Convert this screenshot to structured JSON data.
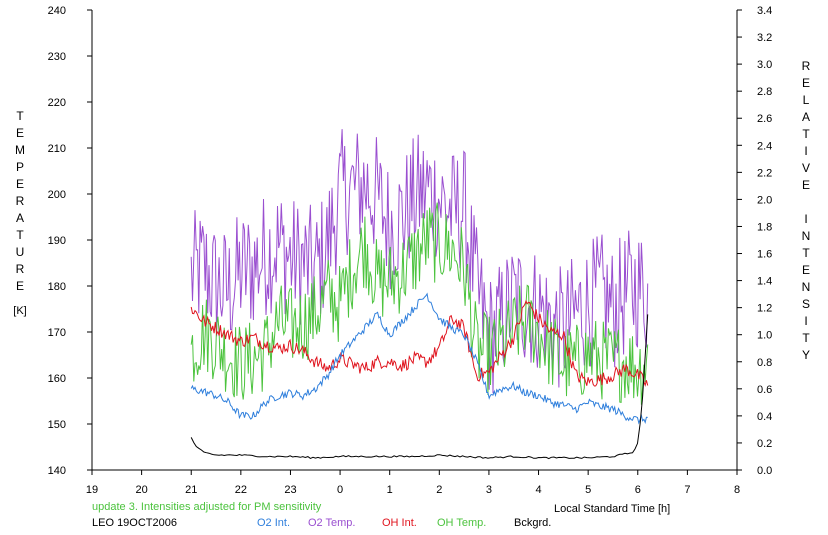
{
  "chart_data": {
    "type": "line",
    "y_left_label": "TEMPERATURE",
    "y_left_unit": "[K]",
    "y_right_label": "RELATIVE INTENSITY",
    "x_label": "Local Standard Time [h]",
    "note": "update 3. Intensities adjusted for PM sensitivity",
    "station": "LEO 19OCT2006",
    "x_ticks": [
      "19",
      "20",
      "21",
      "22",
      "23",
      "0",
      "1",
      "2",
      "3",
      "4",
      "5",
      "6",
      "7",
      "8"
    ],
    "y_left_ticks": [
      140,
      150,
      160,
      170,
      180,
      190,
      200,
      210,
      220,
      230,
      240
    ],
    "y_right_ticks": [
      "0.0",
      "0.2",
      "0.4",
      "0.6",
      "0.8",
      "1.0",
      "1.2",
      "1.4",
      "1.6",
      "1.8",
      "2.0",
      "2.2",
      "2.4",
      "2.6",
      "2.8",
      "3.0",
      "3.2",
      "3.4"
    ],
    "x_range_hours_after_19": [
      0,
      13
    ],
    "y_left_range": [
      140,
      240
    ],
    "y_right_range": [
      0,
      3.4
    ],
    "legend": [
      {
        "name": "O2 Int.",
        "color": "#2f7fdc"
      },
      {
        "name": "O2 Temp.",
        "color": "#9a4fd0"
      },
      {
        "name": "OH Int.",
        "color": "#e0141e"
      },
      {
        "name": "OH Temp.",
        "color": "#4cc33e"
      },
      {
        "name": "Bckgrd.",
        "color": "#000000"
      }
    ],
    "series": [
      {
        "name": "O2 Temp.",
        "axis": "left",
        "color": "#9a4fd0",
        "x": [
          21.0,
          21.25,
          21.5,
          21.75,
          22.0,
          22.25,
          22.5,
          22.75,
          23.0,
          23.25,
          23.5,
          23.75,
          24.0,
          24.25,
          24.5,
          24.75,
          25.0,
          25.25,
          25.5,
          25.75,
          26.0,
          26.25,
          26.5,
          26.75,
          27.0,
          27.25,
          27.5,
          27.75,
          28.0,
          28.25,
          28.5,
          28.75,
          29.0,
          29.25,
          29.5,
          29.75,
          30.0,
          30.2
        ],
        "y": [
          182,
          184,
          180,
          179,
          183,
          184,
          187,
          189,
          186,
          185,
          183,
          189,
          200,
          201,
          202,
          199,
          193,
          195,
          199,
          201,
          199,
          196,
          197,
          179,
          169,
          172,
          177,
          176,
          175,
          172,
          170,
          174,
          176,
          178,
          175,
          178,
          180,
          178
        ]
      },
      {
        "name": "OH Temp.",
        "axis": "left",
        "color": "#4cc33e",
        "x": [
          21.0,
          21.25,
          21.5,
          21.75,
          22.0,
          22.25,
          22.5,
          22.75,
          23.0,
          23.25,
          23.5,
          23.75,
          24.0,
          24.25,
          24.5,
          24.75,
          25.0,
          25.25,
          25.5,
          25.75,
          26.0,
          26.25,
          26.5,
          26.75,
          27.0,
          27.25,
          27.5,
          27.75,
          28.0,
          28.25,
          28.5,
          28.75,
          29.0,
          29.25,
          29.5,
          29.75,
          30.0,
          30.2
        ],
        "y": [
          166,
          170,
          168,
          165,
          163,
          164,
          166,
          172,
          171,
          172,
          174,
          178,
          176,
          184,
          189,
          181,
          181,
          183,
          186,
          190,
          189,
          188,
          184,
          166,
          165,
          167,
          170,
          173,
          170,
          166,
          163,
          163,
          165,
          164,
          163,
          164,
          162,
          164
        ]
      },
      {
        "name": "OH Int.",
        "axis": "right",
        "color": "#e0141e",
        "x": [
          21.0,
          21.25,
          21.5,
          21.75,
          22.0,
          22.25,
          22.5,
          22.75,
          23.0,
          23.25,
          23.5,
          23.75,
          24.0,
          24.25,
          24.5,
          24.75,
          25.0,
          25.25,
          25.5,
          25.75,
          26.0,
          26.25,
          26.5,
          26.75,
          27.0,
          27.25,
          27.5,
          27.75,
          28.0,
          28.25,
          28.5,
          28.75,
          29.0,
          29.25,
          29.5,
          29.75,
          30.0,
          30.2
        ],
        "y": [
          1.2,
          1.1,
          1.05,
          1.0,
          0.95,
          0.98,
          0.93,
          0.9,
          0.92,
          0.88,
          0.8,
          0.75,
          0.82,
          0.78,
          0.75,
          0.8,
          0.8,
          0.77,
          0.82,
          0.8,
          0.9,
          1.12,
          1.05,
          0.7,
          0.72,
          0.85,
          0.98,
          1.25,
          1.12,
          1.02,
          1.0,
          0.7,
          0.65,
          0.67,
          0.7,
          0.75,
          0.7,
          0.63
        ]
      },
      {
        "name": "O2 Int.",
        "axis": "right",
        "color": "#2f7fdc",
        "x": [
          21.0,
          21.25,
          21.5,
          21.75,
          22.0,
          22.25,
          22.5,
          22.75,
          23.0,
          23.25,
          23.5,
          23.75,
          24.0,
          24.25,
          24.5,
          24.75,
          25.0,
          25.25,
          25.5,
          25.75,
          26.0,
          26.25,
          26.5,
          26.75,
          27.0,
          27.25,
          27.5,
          27.75,
          28.0,
          28.25,
          28.5,
          28.75,
          29.0,
          29.25,
          29.5,
          29.75,
          30.0,
          30.2
        ],
        "y": [
          0.6,
          0.58,
          0.55,
          0.5,
          0.4,
          0.4,
          0.5,
          0.55,
          0.57,
          0.55,
          0.6,
          0.7,
          0.85,
          0.95,
          1.05,
          1.15,
          1.0,
          1.1,
          1.2,
          1.3,
          1.12,
          1.05,
          1.0,
          0.8,
          0.55,
          0.6,
          0.62,
          0.57,
          0.55,
          0.5,
          0.48,
          0.45,
          0.5,
          0.47,
          0.45,
          0.4,
          0.37,
          0.38
        ]
      },
      {
        "name": "Bckgrd.",
        "axis": "right",
        "color": "#000000",
        "x": [
          21.0,
          21.1,
          21.25,
          21.5,
          22.0,
          22.5,
          23.0,
          23.5,
          24.0,
          24.5,
          25.0,
          25.5,
          26.0,
          26.5,
          27.0,
          27.5,
          28.0,
          28.5,
          29.0,
          29.5,
          29.9,
          30.0,
          30.05,
          30.1,
          30.15,
          30.2
        ],
        "y": [
          0.24,
          0.17,
          0.13,
          0.11,
          0.11,
          0.1,
          0.1,
          0.09,
          0.1,
          0.1,
          0.1,
          0.1,
          0.11,
          0.1,
          0.09,
          0.1,
          0.09,
          0.09,
          0.09,
          0.1,
          0.13,
          0.2,
          0.35,
          0.55,
          0.85,
          1.15
        ]
      }
    ]
  }
}
